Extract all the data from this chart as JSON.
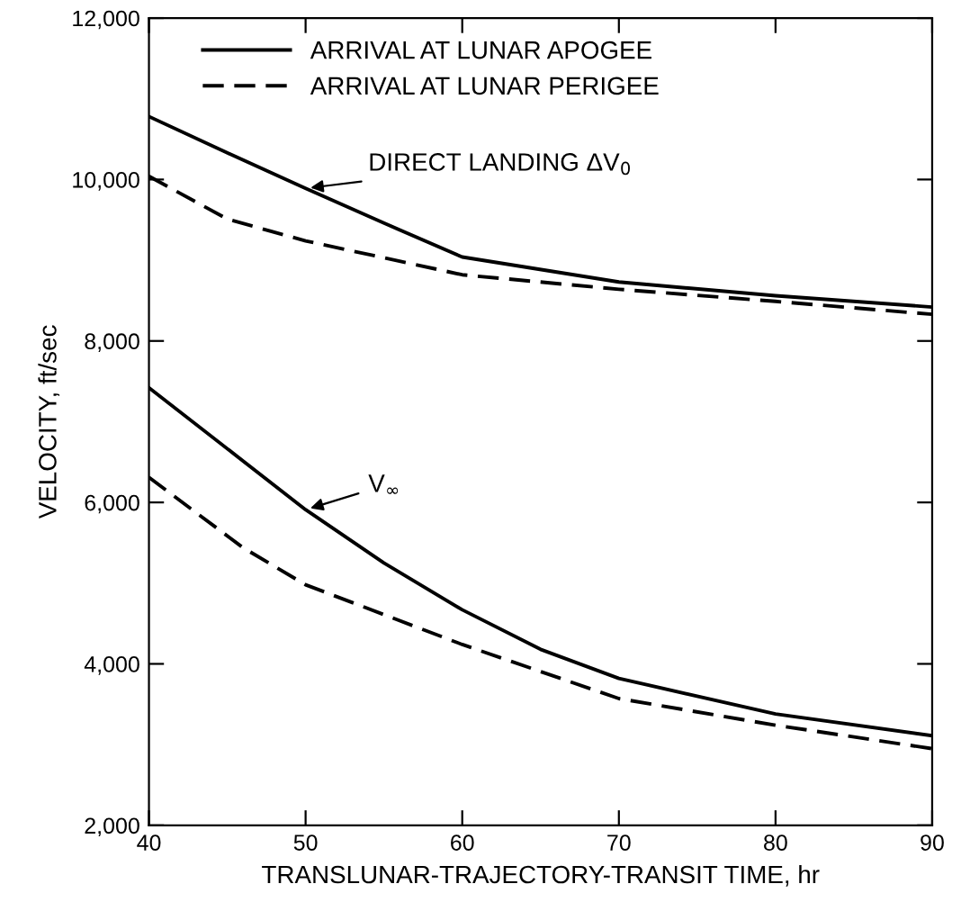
{
  "chart_data": {
    "type": "line",
    "xlabel": "TRANSLUNAR-TRAJECTORY-TRANSIT TIME, hr",
    "ylabel": "VELOCITY, ft/sec",
    "xlim": [
      40,
      90
    ],
    "ylim": [
      2000,
      12000
    ],
    "xticks": [
      40,
      50,
      60,
      70,
      80,
      90
    ],
    "yticks": [
      {
        "value": 2000,
        "label": "2,000"
      },
      {
        "value": 4000,
        "label": "4,000"
      },
      {
        "value": 6000,
        "label": "6,000"
      },
      {
        "value": 8000,
        "label": "8,000"
      },
      {
        "value": 10000,
        "label": "10,000"
      },
      {
        "value": 12000,
        "label": "12,000"
      }
    ],
    "grid": false,
    "legend": "top left",
    "marker": "none",
    "series": [
      {
        "name": "ARRIVAL AT LUNAR APOGEE",
        "color": "#000000",
        "line_style": "solid",
        "x": [
          40,
          45,
          50,
          55,
          60,
          70,
          80,
          90
        ],
        "values": [
          10780,
          10330,
          9890,
          9460,
          9040,
          8730,
          8560,
          8420
        ]
      },
      {
        "name": "ARRIVAL AT LUNAR PERIGEE",
        "color": "#000000",
        "line_style": "dashed",
        "x": [
          40,
          45,
          50,
          60,
          70,
          80,
          90
        ],
        "values": [
          10040,
          9510,
          9240,
          8820,
          8640,
          8490,
          8330
        ]
      },
      {
        "color": "#000000",
        "line_style": "solid",
        "x": [
          40,
          50,
          55,
          60,
          65,
          70,
          80,
          90
        ],
        "values": [
          7420,
          5910,
          5250,
          4670,
          4180,
          3820,
          3380,
          3110
        ]
      },
      {
        "color": "#000000",
        "line_style": "dashed",
        "x": [
          40,
          46,
          50,
          60,
          70,
          80,
          90
        ],
        "values": [
          6310,
          5440,
          4980,
          4240,
          3570,
          3240,
          2950
        ]
      }
    ],
    "annotations": [
      {
        "text": "DIRECT LANDING ΔV$_{0}$",
        "x": 50,
        "y": 9890
      },
      {
        "text": "V$_{∞}$",
        "x": 50,
        "y": 5910
      }
    ]
  }
}
